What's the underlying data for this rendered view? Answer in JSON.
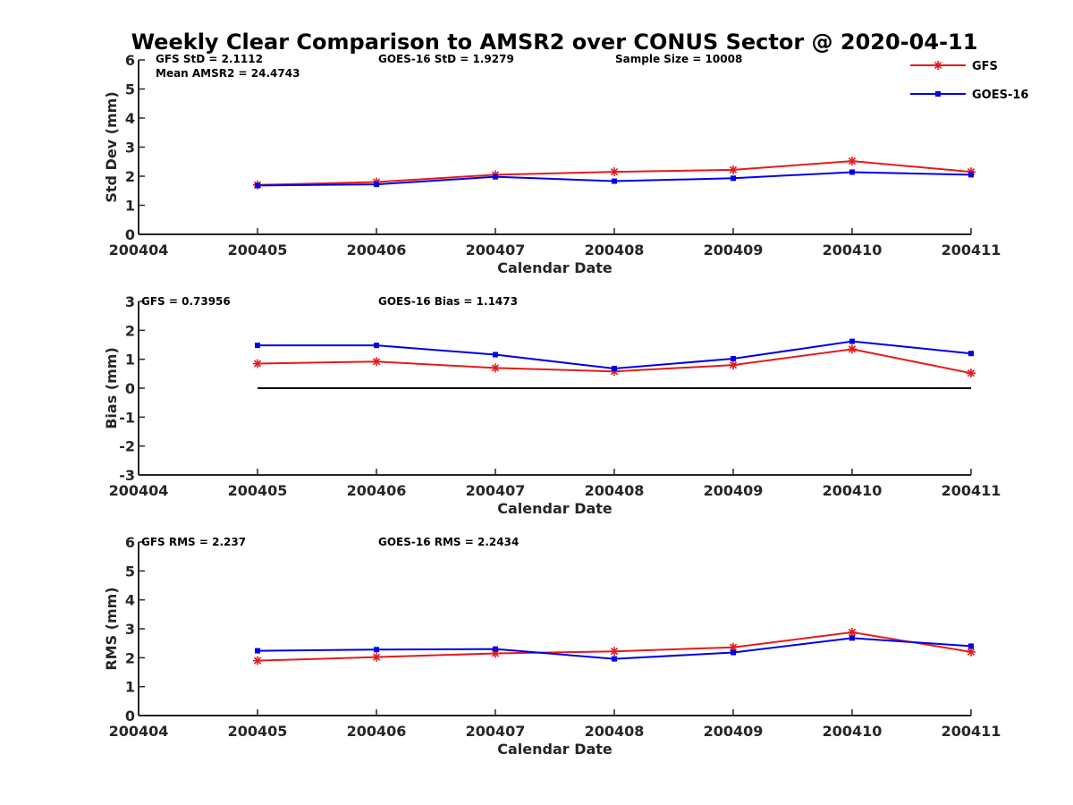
{
  "title": "Weekly Clear Comparison to AMSR2 over CONUS Sector @ 2020-04-11",
  "legend": {
    "placement": "top-right",
    "entries": [
      {
        "name": "GFS",
        "color": "#e41a1c",
        "marker": "asterisk"
      },
      {
        "name": "GOES-16",
        "color": "#0000e6",
        "marker": "square"
      }
    ]
  },
  "chart_data": [
    {
      "type": "line",
      "xlabel": "Calendar Date",
      "ylabel": "Std Dev (mm)",
      "ylim": [
        0,
        6
      ],
      "yticks": [
        "0",
        "1",
        "2",
        "3",
        "4",
        "5",
        "6"
      ],
      "xticks": [
        "200404",
        "200405",
        "200406",
        "200407",
        "200408",
        "200409",
        "200410",
        "200411"
      ],
      "annotations": [
        "GFS StD = 2.1112",
        "GOES-16 StD = 1.9279",
        "Sample Size = 10008",
        "Mean AMSR2 = 24.4743"
      ],
      "series": [
        {
          "name": "GFS",
          "color": "#e41a1c",
          "marker": "asterisk",
          "x": [
            "200405",
            "200406",
            "200407",
            "200408",
            "200409",
            "200410",
            "200411"
          ],
          "values": [
            1.7,
            1.8,
            2.05,
            2.15,
            2.22,
            2.52,
            2.15
          ]
        },
        {
          "name": "GOES-16",
          "color": "#0000e6",
          "marker": "square",
          "x": [
            "200405",
            "200406",
            "200407",
            "200408",
            "200409",
            "200410",
            "200411"
          ],
          "values": [
            1.68,
            1.72,
            1.98,
            1.83,
            1.93,
            2.14,
            2.05
          ]
        }
      ]
    },
    {
      "type": "line",
      "xlabel": "Calendar Date",
      "ylabel": "Bias (mm)",
      "ylim": [
        -3,
        3
      ],
      "yticks": [
        "-3",
        "-2",
        "-1",
        "0",
        "1",
        "2",
        "3"
      ],
      "xticks": [
        "200404",
        "200405",
        "200406",
        "200407",
        "200408",
        "200409",
        "200410",
        "200411"
      ],
      "annotations": [
        "GFS = 0.73956",
        "GOES-16 Bias  = 1.1473"
      ],
      "zero_line": {
        "from": "200405",
        "to": "200411",
        "value": 0
      },
      "series": [
        {
          "name": "GFS",
          "color": "#e41a1c",
          "marker": "asterisk",
          "x": [
            "200405",
            "200406",
            "200407",
            "200408",
            "200409",
            "200410",
            "200411"
          ],
          "values": [
            0.85,
            0.92,
            0.7,
            0.58,
            0.8,
            1.35,
            0.52
          ]
        },
        {
          "name": "GOES-16",
          "color": "#0000e6",
          "marker": "square",
          "x": [
            "200405",
            "200406",
            "200407",
            "200408",
            "200409",
            "200410",
            "200411"
          ],
          "values": [
            1.48,
            1.48,
            1.16,
            0.68,
            1.02,
            1.62,
            1.2
          ]
        }
      ]
    },
    {
      "type": "line",
      "xlabel": "Calendar Date",
      "ylabel": "RMS (mm)",
      "ylim": [
        0,
        6
      ],
      "yticks": [
        "0",
        "1",
        "2",
        "3",
        "4",
        "5",
        "6"
      ],
      "xticks": [
        "200404",
        "200405",
        "200406",
        "200407",
        "200408",
        "200409",
        "200410",
        "200411"
      ],
      "annotations": [
        "GFS RMS = 2.237",
        "GOES-16 RMS = 2.2434"
      ],
      "series": [
        {
          "name": "GFS",
          "color": "#e41a1c",
          "marker": "asterisk",
          "x": [
            "200405",
            "200406",
            "200407",
            "200408",
            "200409",
            "200410",
            "200411"
          ],
          "values": [
            1.9,
            2.02,
            2.15,
            2.22,
            2.36,
            2.88,
            2.2
          ]
        },
        {
          "name": "GOES-16",
          "color": "#0000e6",
          "marker": "square",
          "x": [
            "200405",
            "200406",
            "200407",
            "200408",
            "200409",
            "200410",
            "200411"
          ],
          "values": [
            2.24,
            2.28,
            2.3,
            1.96,
            2.18,
            2.68,
            2.4
          ]
        }
      ]
    }
  ]
}
